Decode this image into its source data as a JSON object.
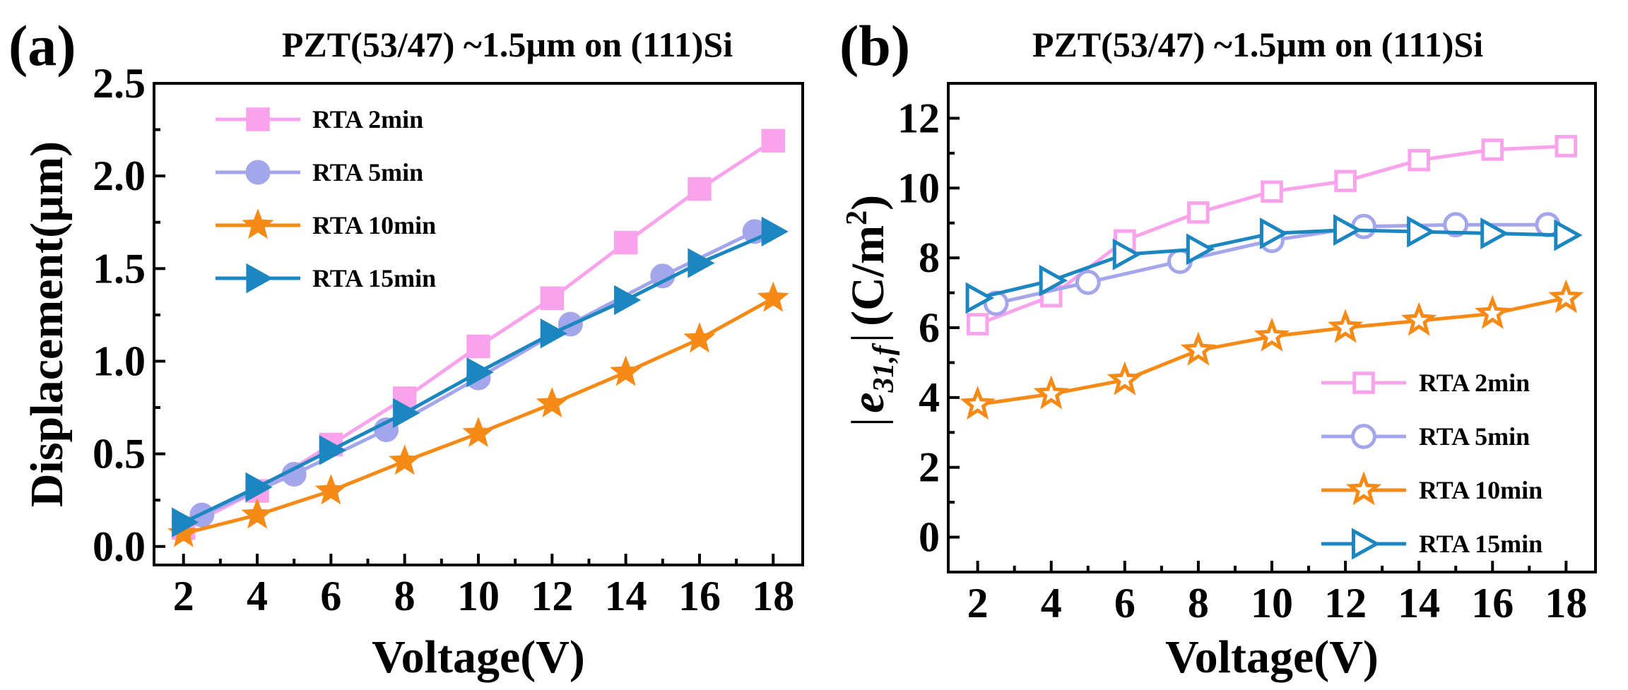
{
  "chart_data": [
    {
      "type": "line",
      "panel_label": "(a)",
      "title": "PZT(53/47)  ~1.5µm on (111)Si",
      "xlabel": "Voltage(V)",
      "ylabel": "Displacement(µm)",
      "xlim": [
        1.2,
        18.8
      ],
      "ylim": [
        -0.1,
        2.5
      ],
      "xticks": [
        "2",
        "4",
        "6",
        "8",
        "10",
        "12",
        "14",
        "16",
        "18"
      ],
      "yticks": [
        "0.0",
        "0.5",
        "1.0",
        "1.5",
        "2.0",
        "2.5"
      ],
      "legend_position": "top-left",
      "series": [
        {
          "name": "RTA 2min",
          "color": "#f9a3ec",
          "marker": "square-filled",
          "x": [
            2,
            4,
            6,
            8,
            10,
            12,
            14,
            16,
            18
          ],
          "y": [
            0.1,
            0.3,
            0.55,
            0.8,
            1.08,
            1.34,
            1.64,
            1.93,
            2.19
          ]
        },
        {
          "name": "RTA 5min",
          "color": "#a3a6ea",
          "marker": "circle-filled",
          "x": [
            2.5,
            5,
            7.5,
            10,
            12.5,
            15,
            17.5
          ],
          "y": [
            0.17,
            0.39,
            0.63,
            0.91,
            1.2,
            1.46,
            1.7
          ]
        },
        {
          "name": "RTA 10min",
          "color": "#f68a16",
          "marker": "star-filled",
          "x": [
            2,
            4,
            6,
            8,
            10,
            12,
            14,
            16,
            18
          ],
          "y": [
            0.07,
            0.17,
            0.3,
            0.46,
            0.61,
            0.77,
            0.94,
            1.12,
            1.34
          ]
        },
        {
          "name": "RTA 15min",
          "color": "#1c86c0",
          "marker": "triangle-right-filled",
          "x": [
            2,
            4,
            6,
            8,
            10,
            12,
            14,
            16,
            18
          ],
          "y": [
            0.13,
            0.32,
            0.52,
            0.72,
            0.94,
            1.15,
            1.33,
            1.53,
            1.7
          ]
        }
      ]
    },
    {
      "type": "line",
      "panel_label": "(b)",
      "title": "PZT(53/47)  ~1.5µm on (111)Si",
      "xlabel": "Voltage(V)",
      "ylabel": "|e31,f| (C/m²)",
      "ylabel_parts": {
        "bar": "|",
        "e": "e",
        "sub": "31,f",
        "unit": "(C/m",
        "sup": "2",
        "close": ")"
      },
      "xlim": [
        1.2,
        18.8
      ],
      "ylim": [
        -1,
        13
      ],
      "xticks": [
        "2",
        "4",
        "6",
        "8",
        "10",
        "12",
        "14",
        "16",
        "18"
      ],
      "yticks": [
        "0",
        "2",
        "4",
        "6",
        "8",
        "10",
        "12"
      ],
      "legend_position": "bottom-right",
      "series": [
        {
          "name": "RTA 2min",
          "color": "#f9a3ec",
          "marker": "square-open",
          "x": [
            2,
            4,
            6,
            8,
            10,
            12,
            14,
            16,
            18
          ],
          "y": [
            6.1,
            6.9,
            8.5,
            9.3,
            9.9,
            10.2,
            10.8,
            11.1,
            11.2
          ]
        },
        {
          "name": "RTA 5min",
          "color": "#a3a6ea",
          "marker": "circle-open",
          "x": [
            2.5,
            5,
            7.5,
            10,
            12.5,
            15,
            17.5
          ],
          "y": [
            6.7,
            7.3,
            7.9,
            8.5,
            8.9,
            8.95,
            8.95
          ]
        },
        {
          "name": "RTA 10min",
          "color": "#f68a16",
          "marker": "star-open",
          "x": [
            2,
            4,
            6,
            8,
            10,
            12,
            14,
            16,
            18
          ],
          "y": [
            3.8,
            4.1,
            4.5,
            5.35,
            5.75,
            6.0,
            6.2,
            6.4,
            6.85
          ]
        },
        {
          "name": "RTA 15min",
          "color": "#1c86c0",
          "marker": "triangle-right-open",
          "x": [
            2,
            4,
            6,
            8,
            10,
            12,
            14,
            16,
            18
          ],
          "y": [
            6.85,
            7.35,
            8.1,
            8.25,
            8.7,
            8.8,
            8.75,
            8.7,
            8.65
          ]
        }
      ]
    }
  ]
}
